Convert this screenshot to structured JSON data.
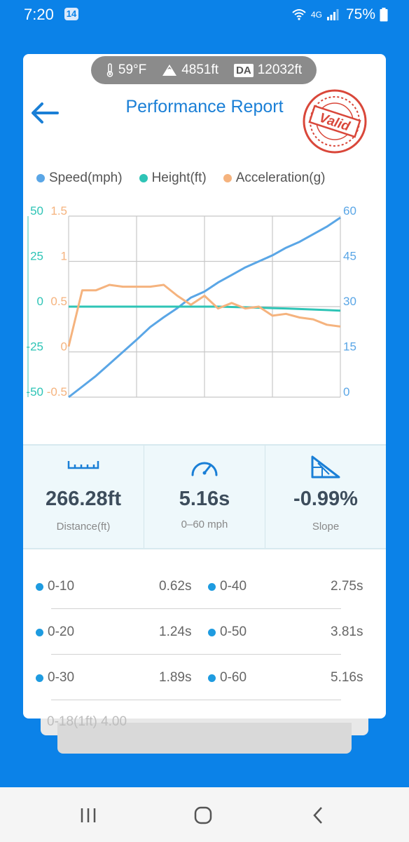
{
  "status": {
    "time": "7:20",
    "badge": "14",
    "network": "4G",
    "battery": "75%"
  },
  "conditions": {
    "temperature": "59°F",
    "elevation": "4851ft",
    "da_label": "DA",
    "density_altitude": "12032ft"
  },
  "header": {
    "title": "Performance Report",
    "stamp_text": "Valid",
    "back_icon": "arrow-left-icon"
  },
  "legend": [
    {
      "label": "Speed(mph)",
      "color": "#5aa6e6"
    },
    {
      "label": "Height(ft)",
      "color": "#2ec4b6"
    },
    {
      "label": "Acceleration(g)",
      "color": "#f5b37e"
    }
  ],
  "chart_data": {
    "type": "line",
    "x": [
      0,
      1,
      2,
      3,
      4,
      5,
      6,
      7,
      8,
      9,
      10,
      11,
      12,
      13,
      14,
      15,
      16,
      17,
      18,
      19,
      20
    ],
    "series": [
      {
        "name": "Speed(mph)",
        "axis": "right",
        "ylim": [
          0,
          60
        ],
        "values": [
          0,
          3.5,
          7,
          11,
          15,
          19,
          23.2,
          26.5,
          29.5,
          33,
          35,
          38,
          40.5,
          43,
          45,
          47,
          49.5,
          51.5,
          54,
          56.5,
          59.5
        ]
      },
      {
        "name": "Height(ft)",
        "axis": "left-outer",
        "ylim": [
          -50,
          50
        ],
        "values": [
          0,
          0,
          0,
          0,
          0,
          0,
          0,
          0,
          0,
          0,
          0,
          0,
          -0.2,
          -0.4,
          -0.6,
          -0.8,
          -1,
          -1.3,
          -1.6,
          -1.9,
          -2.2
        ]
      },
      {
        "name": "Acceleration(g)",
        "axis": "left-inner",
        "ylim": [
          -0.5,
          1.5
        ],
        "values": [
          0.06,
          0.68,
          0.68,
          0.74,
          0.72,
          0.72,
          0.72,
          0.74,
          0.62,
          0.52,
          0.62,
          0.48,
          0.54,
          0.48,
          0.5,
          0.4,
          0.42,
          0.38,
          0.36,
          0.3,
          0.28
        ]
      }
    ],
    "y_left_outer": {
      "ticks": [
        "50",
        "25",
        "0",
        "-25",
        "-50"
      ],
      "color": "#2ec4b6"
    },
    "y_left_inner": {
      "ticks": [
        "1.5",
        "1",
        "0.5",
        "0",
        "-0.5"
      ],
      "color": "#f5b37e"
    },
    "y_right": {
      "ticks": [
        "60",
        "45",
        "30",
        "15",
        "0"
      ],
      "color": "#5aa6e6"
    },
    "grid": true
  },
  "stats": [
    {
      "icon": "ruler-icon",
      "value": "266.28ft",
      "label": "Distance(ft)"
    },
    {
      "icon": "speedometer-icon",
      "value": "5.16s",
      "label": "0–60 mph"
    },
    {
      "icon": "slope-icon",
      "value": "-0.99%",
      "label": "Slope"
    }
  ],
  "splits": [
    {
      "left_label": "0-10",
      "left_time": "0.62s",
      "right_label": "0-40",
      "right_time": "2.75s"
    },
    {
      "left_label": "0-20",
      "left_time": "1.24s",
      "right_label": "0-50",
      "right_time": "3.81s"
    },
    {
      "left_label": "0-30",
      "left_time": "1.89s",
      "right_label": "0-60",
      "right_time": "5.16s"
    }
  ],
  "split_partial": "0-18(1ft)  4.00",
  "nav": {
    "recent_icon": "recents-icon",
    "home_icon": "home-icon",
    "back_icon": "back-chevron-icon"
  }
}
